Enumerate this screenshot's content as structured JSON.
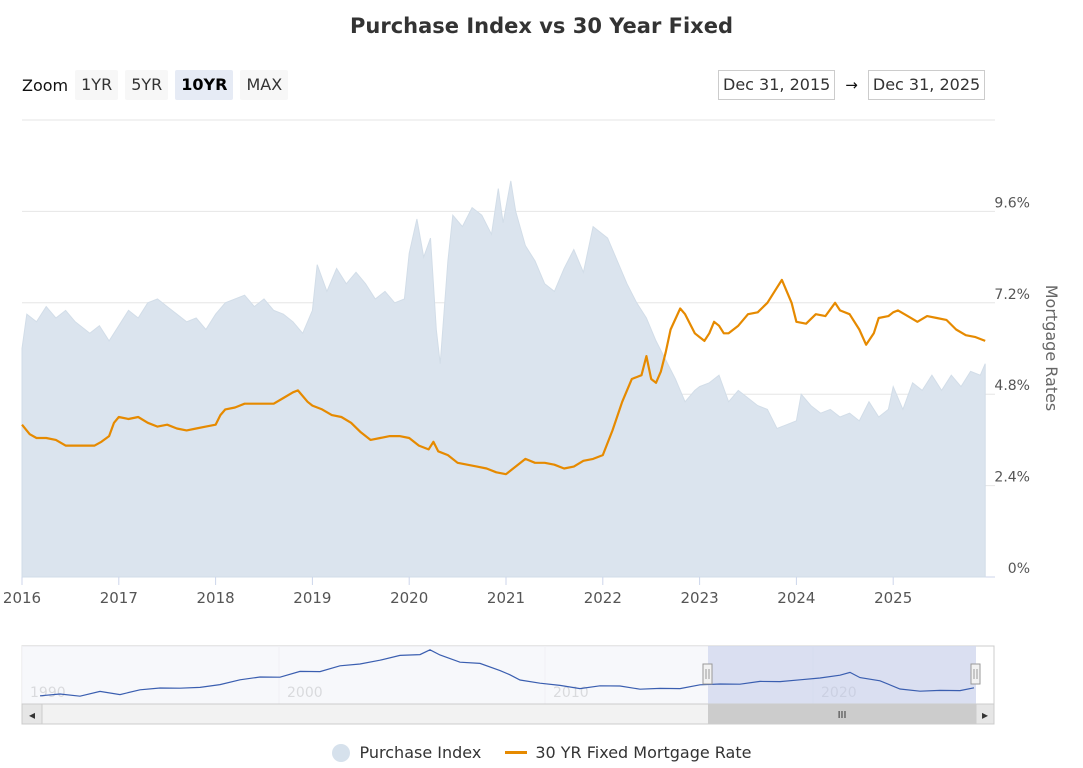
{
  "title": "Purchase Index vs 30 Year Fixed",
  "zoom": {
    "label": "Zoom",
    "buttons": [
      "1YR",
      "5YR",
      "10YR",
      "MAX"
    ],
    "active": "10YR"
  },
  "range": {
    "from": "Dec 31, 2015",
    "arrow": "→",
    "to": "Dec 31, 2025"
  },
  "colors": {
    "index_fill": "#dbe4ee",
    "index_line": "#d2dde8",
    "rate_line": "#e68a00",
    "navigator_line": "#3a5eb0",
    "navigator_mask": "#d3d9ee"
  },
  "legend": [
    {
      "label": "Purchase Index",
      "symbol": "dot"
    },
    {
      "label": "30 YR Fixed Mortgage Rate",
      "symbol": "line"
    }
  ],
  "navigator": {
    "labels": [
      "1990",
      "2000",
      "2010",
      "2020"
    ],
    "scrollbar_grip": "III",
    "left_arrow": "◂",
    "right_arrow": "▸"
  },
  "chart_data": {
    "type": "line",
    "title": "Purchase Index vs 30 Year Fixed",
    "x_range": [
      2016.0,
      2026.0
    ],
    "x_tick_labels": [
      "2016",
      "2017",
      "2018",
      "2019",
      "2020",
      "2021",
      "2022",
      "2023",
      "2024",
      "2025"
    ],
    "y_axis": {
      "label": "Mortgage Rates",
      "position": "right",
      "ticks": [
        "0%",
        "2.4%",
        "4.8%",
        "7.2%",
        "9.6%"
      ],
      "range": [
        0,
        12
      ]
    },
    "grid": true,
    "legend_position": "bottom",
    "series": [
      {
        "name": "Purchase Index",
        "type": "area",
        "points": [
          [
            2016.0,
            6.0
          ],
          [
            2016.05,
            6.9
          ],
          [
            2016.15,
            6.7
          ],
          [
            2016.25,
            7.1
          ],
          [
            2016.35,
            6.8
          ],
          [
            2016.45,
            7.0
          ],
          [
            2016.55,
            6.7
          ],
          [
            2016.7,
            6.4
          ],
          [
            2016.8,
            6.6
          ],
          [
            2016.9,
            6.2
          ],
          [
            2017.0,
            6.6
          ],
          [
            2017.1,
            7.0
          ],
          [
            2017.2,
            6.8
          ],
          [
            2017.3,
            7.2
          ],
          [
            2017.4,
            7.3
          ],
          [
            2017.5,
            7.1
          ],
          [
            2017.6,
            6.9
          ],
          [
            2017.7,
            6.7
          ],
          [
            2017.8,
            6.8
          ],
          [
            2017.9,
            6.5
          ],
          [
            2018.0,
            6.9
          ],
          [
            2018.1,
            7.2
          ],
          [
            2018.2,
            7.3
          ],
          [
            2018.3,
            7.4
          ],
          [
            2018.4,
            7.1
          ],
          [
            2018.5,
            7.3
          ],
          [
            2018.6,
            7.0
          ],
          [
            2018.7,
            6.9
          ],
          [
            2018.8,
            6.7
          ],
          [
            2018.9,
            6.4
          ],
          [
            2019.0,
            7.0
          ],
          [
            2019.05,
            8.2
          ],
          [
            2019.15,
            7.5
          ],
          [
            2019.25,
            8.1
          ],
          [
            2019.35,
            7.7
          ],
          [
            2019.45,
            8.0
          ],
          [
            2019.55,
            7.7
          ],
          [
            2019.65,
            7.3
          ],
          [
            2019.75,
            7.5
          ],
          [
            2019.85,
            7.2
          ],
          [
            2019.95,
            7.3
          ],
          [
            2020.0,
            8.5
          ],
          [
            2020.08,
            9.4
          ],
          [
            2020.15,
            8.4
          ],
          [
            2020.22,
            8.9
          ],
          [
            2020.28,
            6.5
          ],
          [
            2020.32,
            5.6
          ],
          [
            2020.4,
            8.3
          ],
          [
            2020.45,
            9.5
          ],
          [
            2020.55,
            9.2
          ],
          [
            2020.65,
            9.7
          ],
          [
            2020.75,
            9.5
          ],
          [
            2020.85,
            9.0
          ],
          [
            2020.92,
            10.2
          ],
          [
            2020.97,
            9.3
          ],
          [
            2021.05,
            10.4
          ],
          [
            2021.1,
            9.6
          ],
          [
            2021.2,
            8.7
          ],
          [
            2021.3,
            8.3
          ],
          [
            2021.4,
            7.7
          ],
          [
            2021.5,
            7.5
          ],
          [
            2021.6,
            8.1
          ],
          [
            2021.7,
            8.6
          ],
          [
            2021.8,
            8.0
          ],
          [
            2021.9,
            9.2
          ],
          [
            2022.0,
            9.0
          ],
          [
            2022.05,
            8.9
          ],
          [
            2022.15,
            8.3
          ],
          [
            2022.25,
            7.7
          ],
          [
            2022.35,
            7.2
          ],
          [
            2022.45,
            6.8
          ],
          [
            2022.55,
            6.2
          ],
          [
            2022.65,
            5.7
          ],
          [
            2022.75,
            5.2
          ],
          [
            2022.85,
            4.6
          ],
          [
            2022.95,
            4.9
          ],
          [
            2023.0,
            5.0
          ],
          [
            2023.1,
            5.1
          ],
          [
            2023.2,
            5.3
          ],
          [
            2023.3,
            4.6
          ],
          [
            2023.4,
            4.9
          ],
          [
            2023.5,
            4.7
          ],
          [
            2023.6,
            4.5
          ],
          [
            2023.7,
            4.4
          ],
          [
            2023.8,
            3.9
          ],
          [
            2023.9,
            4.0
          ],
          [
            2024.0,
            4.1
          ],
          [
            2024.05,
            4.8
          ],
          [
            2024.15,
            4.5
          ],
          [
            2024.25,
            4.3
          ],
          [
            2024.35,
            4.4
          ],
          [
            2024.45,
            4.2
          ],
          [
            2024.55,
            4.3
          ],
          [
            2024.65,
            4.1
          ],
          [
            2024.75,
            4.6
          ],
          [
            2024.85,
            4.2
          ],
          [
            2024.95,
            4.4
          ],
          [
            2025.0,
            5.0
          ],
          [
            2025.1,
            4.4
          ],
          [
            2025.2,
            5.1
          ],
          [
            2025.3,
            4.9
          ],
          [
            2025.4,
            5.3
          ],
          [
            2025.5,
            4.9
          ],
          [
            2025.6,
            5.3
          ],
          [
            2025.7,
            5.0
          ],
          [
            2025.8,
            5.4
          ],
          [
            2025.9,
            5.3
          ],
          [
            2025.95,
            5.6
          ]
        ]
      },
      {
        "name": "30 YR Fixed Mortgage Rate",
        "type": "line",
        "points": [
          [
            2016.0,
            4.0
          ],
          [
            2016.08,
            3.75
          ],
          [
            2016.15,
            3.65
          ],
          [
            2016.25,
            3.65
          ],
          [
            2016.35,
            3.6
          ],
          [
            2016.45,
            3.45
          ],
          [
            2016.55,
            3.45
          ],
          [
            2016.65,
            3.45
          ],
          [
            2016.75,
            3.45
          ],
          [
            2016.82,
            3.55
          ],
          [
            2016.9,
            3.7
          ],
          [
            2016.95,
            4.05
          ],
          [
            2017.0,
            4.2
          ],
          [
            2017.1,
            4.15
          ],
          [
            2017.2,
            4.2
          ],
          [
            2017.3,
            4.05
          ],
          [
            2017.4,
            3.95
          ],
          [
            2017.5,
            4.0
          ],
          [
            2017.6,
            3.9
          ],
          [
            2017.7,
            3.85
          ],
          [
            2017.8,
            3.9
          ],
          [
            2017.9,
            3.95
          ],
          [
            2018.0,
            4.0
          ],
          [
            2018.05,
            4.25
          ],
          [
            2018.1,
            4.4
          ],
          [
            2018.2,
            4.45
          ],
          [
            2018.3,
            4.55
          ],
          [
            2018.4,
            4.55
          ],
          [
            2018.5,
            4.55
          ],
          [
            2018.6,
            4.55
          ],
          [
            2018.7,
            4.7
          ],
          [
            2018.8,
            4.85
          ],
          [
            2018.85,
            4.9
          ],
          [
            2018.95,
            4.6
          ],
          [
            2019.0,
            4.5
          ],
          [
            2019.1,
            4.4
          ],
          [
            2019.2,
            4.25
          ],
          [
            2019.3,
            4.2
          ],
          [
            2019.4,
            4.05
          ],
          [
            2019.5,
            3.8
          ],
          [
            2019.6,
            3.6
          ],
          [
            2019.7,
            3.65
          ],
          [
            2019.8,
            3.7
          ],
          [
            2019.9,
            3.7
          ],
          [
            2020.0,
            3.65
          ],
          [
            2020.1,
            3.45
          ],
          [
            2020.2,
            3.35
          ],
          [
            2020.25,
            3.55
          ],
          [
            2020.3,
            3.3
          ],
          [
            2020.4,
            3.2
          ],
          [
            2020.5,
            3.0
          ],
          [
            2020.6,
            2.95
          ],
          [
            2020.7,
            2.9
          ],
          [
            2020.8,
            2.85
          ],
          [
            2020.9,
            2.75
          ],
          [
            2021.0,
            2.7
          ],
          [
            2021.05,
            2.8
          ],
          [
            2021.15,
            3.0
          ],
          [
            2021.2,
            3.1
          ],
          [
            2021.3,
            3.0
          ],
          [
            2021.4,
            3.0
          ],
          [
            2021.5,
            2.95
          ],
          [
            2021.6,
            2.85
          ],
          [
            2021.7,
            2.9
          ],
          [
            2021.8,
            3.05
          ],
          [
            2021.9,
            3.1
          ],
          [
            2022.0,
            3.2
          ],
          [
            2022.1,
            3.85
          ],
          [
            2022.2,
            4.6
          ],
          [
            2022.3,
            5.2
          ],
          [
            2022.4,
            5.3
          ],
          [
            2022.45,
            5.8
          ],
          [
            2022.5,
            5.2
          ],
          [
            2022.55,
            5.1
          ],
          [
            2022.6,
            5.4
          ],
          [
            2022.65,
            5.9
          ],
          [
            2022.7,
            6.5
          ],
          [
            2022.8,
            7.05
          ],
          [
            2022.85,
            6.9
          ],
          [
            2022.95,
            6.4
          ],
          [
            2023.0,
            6.3
          ],
          [
            2023.05,
            6.2
          ],
          [
            2023.1,
            6.4
          ],
          [
            2023.15,
            6.7
          ],
          [
            2023.2,
            6.6
          ],
          [
            2023.25,
            6.4
          ],
          [
            2023.3,
            6.4
          ],
          [
            2023.4,
            6.6
          ],
          [
            2023.5,
            6.9
          ],
          [
            2023.6,
            6.95
          ],
          [
            2023.7,
            7.2
          ],
          [
            2023.8,
            7.6
          ],
          [
            2023.85,
            7.8
          ],
          [
            2023.95,
            7.2
          ],
          [
            2024.0,
            6.7
          ],
          [
            2024.1,
            6.65
          ],
          [
            2024.2,
            6.9
          ],
          [
            2024.3,
            6.85
          ],
          [
            2024.4,
            7.2
          ],
          [
            2024.45,
            7.0
          ],
          [
            2024.55,
            6.9
          ],
          [
            2024.65,
            6.5
          ],
          [
            2024.72,
            6.1
          ],
          [
            2024.8,
            6.4
          ],
          [
            2024.85,
            6.8
          ],
          [
            2024.95,
            6.85
          ],
          [
            2025.0,
            6.95
          ],
          [
            2025.05,
            7.0
          ],
          [
            2025.15,
            6.85
          ],
          [
            2025.25,
            6.7
          ],
          [
            2025.35,
            6.85
          ],
          [
            2025.45,
            6.8
          ],
          [
            2025.55,
            6.75
          ],
          [
            2025.65,
            6.5
          ],
          [
            2025.75,
            6.35
          ],
          [
            2025.85,
            6.3
          ],
          [
            2025.95,
            6.2
          ]
        ]
      }
    ]
  }
}
